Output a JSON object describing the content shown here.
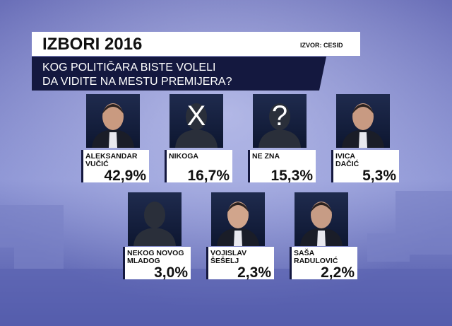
{
  "header": {
    "title": "IZBORI 2016",
    "source": "IZVOR: CESID",
    "question": [
      "KOG POLITIČARA BISTE VOLELI",
      "DA VIDITE NA MESTU PREMIJERA?"
    ]
  },
  "candidates": [
    {
      "name": [
        "ALEKSANDAR",
        "VUČIĆ"
      ],
      "value": "42,9%"
    },
    {
      "name": [
        "NIKOGA"
      ],
      "value": "16,7%"
    },
    {
      "name": [
        "NE ZNA"
      ],
      "value": "15,3%"
    },
    {
      "name": [
        "IVICA",
        "DAČIĆ"
      ],
      "value": "5,3%"
    },
    {
      "name": [
        "NEKOG NOVOG",
        "MLADOG"
      ],
      "value": "3,0%"
    },
    {
      "name": [
        "VOJISLAV",
        "ŠEŠELJ"
      ],
      "value": "2,3%"
    },
    {
      "name": [
        "SAŠA",
        "RADULOVIĆ"
      ],
      "value": "2,2%"
    }
  ]
}
